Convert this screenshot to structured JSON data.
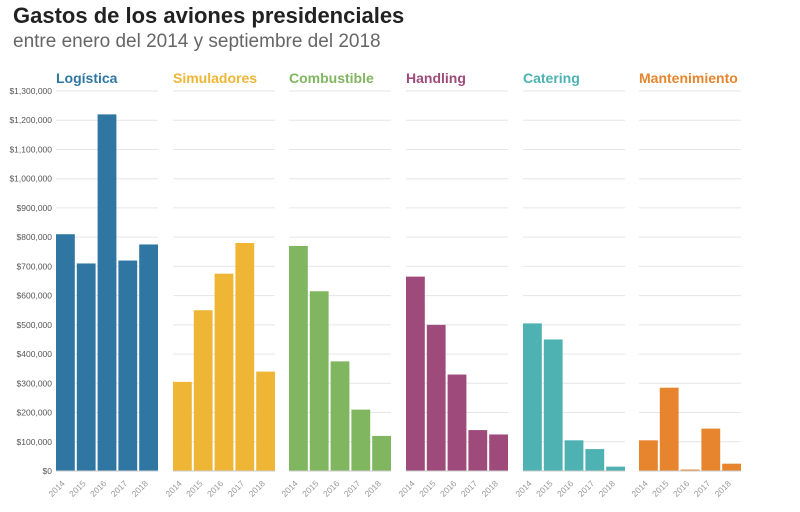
{
  "title": "Gastos de los aviones presidenciales",
  "subtitle": "entre enero del 2014 y septiembre del 2018",
  "chart_data": {
    "type": "bar",
    "title": "Gastos de los aviones presidenciales",
    "subtitle": "entre enero del 2014 y septiembre del 2018",
    "categories": [
      "2014",
      "2015",
      "2016",
      "2017",
      "2018"
    ],
    "ylim": [
      0,
      1300000
    ],
    "yticks": [
      0,
      100000,
      200000,
      300000,
      400000,
      500000,
      600000,
      700000,
      800000,
      900000,
      1000000,
      1100000,
      1200000,
      1300000
    ],
    "ytick_labels": [
      "$0",
      "$100,000",
      "$200,000",
      "$300,000",
      "$400,000",
      "$500,000",
      "$600,000",
      "$700,000",
      "$800,000",
      "$900,000",
      "$1,000,000",
      "$1,100,000",
      "$1,200,000",
      "$1,300,000"
    ],
    "grid": true,
    "series": [
      {
        "name": "Logística",
        "color": "#2f76a3",
        "values": [
          810000,
          710000,
          1220000,
          720000,
          775000
        ]
      },
      {
        "name": "Simuladores",
        "color": "#efb534",
        "values": [
          305000,
          550000,
          675000,
          780000,
          340000
        ]
      },
      {
        "name": "Combustible",
        "color": "#80b660",
        "values": [
          770000,
          615000,
          375000,
          210000,
          120000
        ]
      },
      {
        "name": "Handling",
        "color": "#9e4a7b",
        "values": [
          665000,
          500000,
          330000,
          140000,
          125000
        ]
      },
      {
        "name": "Catering",
        "color": "#4eb1b2",
        "values": [
          505000,
          450000,
          105000,
          75000,
          15000
        ]
      },
      {
        "name": "Mantenimiento",
        "color": "#e6852d",
        "values": [
          105000,
          285000,
          5000,
          145000,
          25000
        ]
      }
    ]
  }
}
